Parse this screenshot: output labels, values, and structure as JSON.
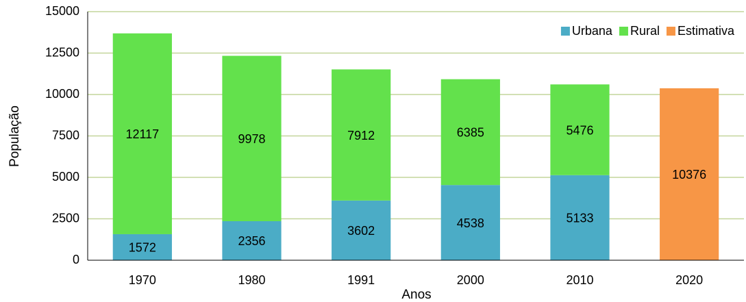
{
  "chart_data": {
    "type": "stacked_bar",
    "x_label": "Anos",
    "y_label": "População",
    "categories": [
      "1970",
      "1980",
      "1991",
      "2000",
      "2010",
      "2020"
    ],
    "series": [
      {
        "name": "Urbana",
        "color": "#4bacc6",
        "values": [
          1572,
          2356,
          3602,
          4538,
          5133,
          null
        ]
      },
      {
        "name": "Rural",
        "color": "#63e14c",
        "values": [
          12117,
          9978,
          7912,
          6385,
          5476,
          null
        ]
      },
      {
        "name": "Estimativa",
        "color": "#f79646",
        "values": [
          null,
          null,
          null,
          null,
          null,
          10376
        ]
      }
    ],
    "ylim": [
      0,
      15000
    ],
    "yticks": [
      0,
      2500,
      5000,
      7500,
      10000,
      12500,
      15000
    ],
    "grid": true,
    "legend": "upper right"
  }
}
